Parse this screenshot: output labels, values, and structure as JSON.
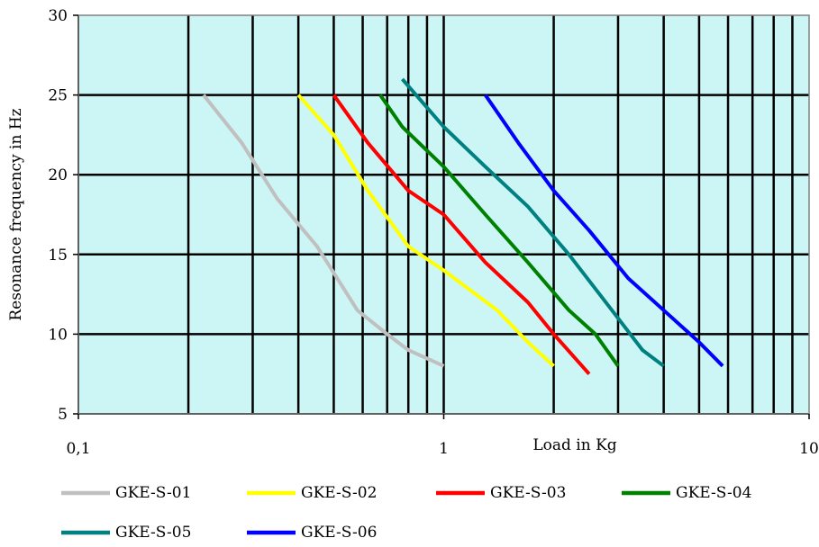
{
  "chart_data": {
    "type": "line",
    "title": "",
    "xlabel": "Load in Kg",
    "ylabel": "Resonance frequency in Hz",
    "xscale": "log",
    "xlim": [
      0.1,
      10
    ],
    "ylim": [
      5,
      30
    ],
    "x_tick_labels": [
      {
        "value": 0.1,
        "label": "0,1"
      },
      {
        "value": 1,
        "label": "1"
      },
      {
        "value": 10,
        "label": "10"
      }
    ],
    "y_tick_labels": [
      {
        "value": 5,
        "label": "5"
      },
      {
        "value": 10,
        "label": "10"
      },
      {
        "value": 15,
        "label": "15"
      },
      {
        "value": 20,
        "label": "20"
      },
      {
        "value": 25,
        "label": "25"
      },
      {
        "value": 30,
        "label": "30"
      }
    ],
    "x_minor_gridlines": [
      0.2,
      0.3,
      0.4,
      0.5,
      0.6,
      0.7,
      0.8,
      0.9,
      2,
      3,
      4,
      5,
      6,
      7,
      8,
      9
    ],
    "grid": true,
    "plot_background": "#ccf6f6",
    "legend_position": "bottom",
    "series": [
      {
        "name": "GKE-S-01",
        "color": "#c0c0c0",
        "points": [
          [
            0.22,
            25
          ],
          [
            0.28,
            22
          ],
          [
            0.35,
            18.5
          ],
          [
            0.45,
            15.5
          ],
          [
            0.58,
            11.5
          ],
          [
            0.7,
            10
          ],
          [
            0.8,
            9
          ],
          [
            1.0,
            8
          ]
        ]
      },
      {
        "name": "GKE-S-02",
        "color": "#ffff00",
        "points": [
          [
            0.4,
            25
          ],
          [
            0.5,
            22.5
          ],
          [
            0.62,
            19
          ],
          [
            0.8,
            15.5
          ],
          [
            1.0,
            14
          ],
          [
            1.4,
            11.5
          ],
          [
            1.7,
            9.5
          ],
          [
            2.0,
            8
          ]
        ]
      },
      {
        "name": "GKE-S-03",
        "color": "#ff0000",
        "points": [
          [
            0.5,
            25
          ],
          [
            0.62,
            22
          ],
          [
            0.8,
            19
          ],
          [
            1.0,
            17.5
          ],
          [
            1.3,
            14.5
          ],
          [
            1.7,
            12
          ],
          [
            2.0,
            10
          ],
          [
            2.5,
            7.5
          ]
        ]
      },
      {
        "name": "GKE-S-04",
        "color": "#008000",
        "points": [
          [
            0.67,
            25
          ],
          [
            0.77,
            23
          ],
          [
            1.0,
            20.5
          ],
          [
            1.3,
            17.5
          ],
          [
            1.7,
            14.5
          ],
          [
            2.2,
            11.5
          ],
          [
            2.6,
            10
          ],
          [
            3.0,
            8
          ]
        ]
      },
      {
        "name": "GKE-S-05",
        "color": "#008080",
        "points": [
          [
            0.77,
            26
          ],
          [
            1.0,
            23
          ],
          [
            1.3,
            20.5
          ],
          [
            1.7,
            18
          ],
          [
            2.2,
            15
          ],
          [
            3.0,
            11
          ],
          [
            3.5,
            9
          ],
          [
            4.0,
            8
          ]
        ]
      },
      {
        "name": "GKE-S-06",
        "color": "#0000ff",
        "points": [
          [
            1.3,
            25
          ],
          [
            1.6,
            22
          ],
          [
            2.0,
            19
          ],
          [
            2.5,
            16.5
          ],
          [
            3.2,
            13.5
          ],
          [
            4.0,
            11.5
          ],
          [
            5.0,
            9.5
          ],
          [
            5.8,
            8
          ]
        ]
      }
    ]
  }
}
